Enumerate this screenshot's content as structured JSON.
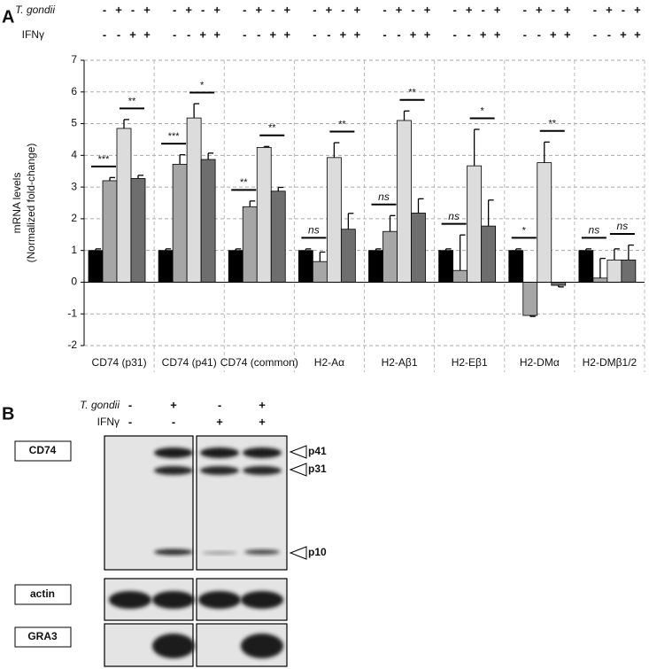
{
  "panel_labels": [
    "A",
    "B"
  ],
  "chart_data": {
    "type": "bar",
    "conditions": [
      {
        "label": "T. gondii",
        "signs": [
          "-",
          "+",
          "-",
          "+"
        ]
      },
      {
        "label": "IFNγ",
        "signs": [
          "-",
          "-",
          "+",
          "+"
        ]
      }
    ],
    "y_label": [
      "mRNA levels",
      "(Normalized fold-change)"
    ],
    "categories": [
      "CD74 (p31)",
      "CD74 (p41)",
      "CD74 (common)",
      "H2-Aα",
      "H2-Aβ1",
      "H2-Eβ1",
      "H2-DMα",
      "H2-DMβ1/2"
    ],
    "series": [
      {
        "color": "#000000",
        "values": [
          1.0,
          1.0,
          1.0,
          1.0,
          1.0,
          1.0,
          1.0,
          1.0
        ],
        "errors": [
          0.05,
          0.05,
          0.05,
          0.05,
          0.05,
          0.05,
          0.05,
          0.05
        ]
      },
      {
        "color": "#a6a6a6",
        "values": [
          3.2,
          3.72,
          2.38,
          0.65,
          1.6,
          0.37,
          -1.05,
          0.13
        ],
        "errors": [
          0.1,
          0.3,
          0.18,
          0.3,
          0.5,
          1.12,
          0.03,
          0.62
        ]
      },
      {
        "color": "#dcdcdc",
        "values": [
          4.85,
          5.18,
          4.25,
          3.93,
          5.1,
          3.67,
          3.77,
          0.7
        ],
        "errors": [
          0.28,
          0.45,
          0.03,
          0.47,
          0.3,
          1.15,
          0.65,
          0.35
        ]
      },
      {
        "color": "#6e6e6e",
        "values": [
          3.27,
          3.87,
          2.87,
          1.67,
          2.18,
          1.77,
          -0.1,
          0.7
        ],
        "errors": [
          0.1,
          0.2,
          0.12,
          0.5,
          0.45,
          0.82,
          0.05,
          0.47
        ]
      }
    ],
    "significance": [
      [
        "***",
        "**"
      ],
      [
        "***",
        "*"
      ],
      [
        "**",
        "**"
      ],
      [
        "ns",
        "**"
      ],
      [
        "ns",
        "**"
      ],
      [
        "ns",
        "*"
      ],
      [
        "*",
        "**"
      ],
      [
        "ns",
        "ns"
      ]
    ],
    "ylim": [
      -2,
      7
    ],
    "yticks": [
      -2,
      -1,
      0,
      1,
      2,
      3,
      4,
      5,
      6,
      7
    ],
    "grid": true
  },
  "blot": {
    "conditions": [
      {
        "label": "T. gondii",
        "signs": [
          "-",
          "+",
          "-",
          "+"
        ]
      },
      {
        "label": "IFNγ",
        "signs": [
          "-",
          "-",
          "+",
          "+"
        ]
      }
    ],
    "antibodies": [
      "CD74",
      "actin",
      "GRA3"
    ],
    "bands": [
      "p41",
      "p31",
      "p10"
    ]
  }
}
